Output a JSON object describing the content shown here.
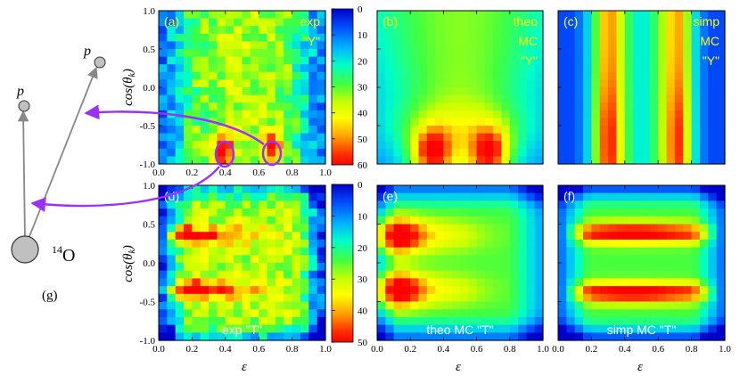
{
  "chart_data": [
    {
      "panel": "(a)",
      "type": "heatmap",
      "labels": [
        "exp",
        "\"Y\""
      ],
      "label_color": "#ffff00",
      "source": "exp_y",
      "x_ticks": [
        "0.0",
        "0.2",
        "0.4",
        "0.6",
        "0.8",
        "1.0"
      ],
      "y_ticks": [
        "1.0",
        "0.5",
        "0.0",
        "-0.5",
        "-1.0"
      ],
      "xlim": [
        0,
        1
      ],
      "ylim": [
        -1,
        1
      ],
      "ylabel": "cos(θk)"
    },
    {
      "panel": "(b)",
      "type": "heatmap",
      "labels": [
        "theo",
        "MC",
        "\"Y\""
      ],
      "label_color": "#ffff00",
      "source": "theo_y",
      "xlim": [
        0,
        1
      ],
      "ylim": [
        -1,
        1
      ]
    },
    {
      "panel": "(c)",
      "type": "heatmap",
      "labels": [
        "simp",
        "MC",
        "\"Y\""
      ],
      "label_color": "#ffff00",
      "source": "simp_y",
      "xlim": [
        0,
        1
      ],
      "ylim": [
        -1,
        1
      ]
    },
    {
      "panel": "(d)",
      "type": "heatmap",
      "labels": [
        "exp  \"T\""
      ],
      "label_color": "#ffffff",
      "source": "exp_t",
      "x_ticks": [
        "0.0",
        "0.2",
        "0.4",
        "0.6",
        "0.8",
        "1.0"
      ],
      "y_ticks": [
        "1.0",
        "0.5",
        "0.0",
        "-0.5",
        "-1.0"
      ],
      "xlim": [
        0,
        1
      ],
      "ylim": [
        -1,
        1
      ],
      "xlabel": "ε",
      "ylabel": "cos(θk)"
    },
    {
      "panel": "(e)",
      "type": "heatmap",
      "labels": [
        "theo MC  \"T\""
      ],
      "label_color": "#ffffff",
      "source": "theo_t",
      "x_ticks": [
        "0.0",
        "0.2",
        "0.4",
        "0.6",
        "0.8",
        "1.0"
      ],
      "xlim": [
        0,
        1
      ],
      "ylim": [
        -1,
        1
      ],
      "xlabel": "ε"
    },
    {
      "panel": "(f)",
      "type": "heatmap",
      "labels": [
        "simp MC  \"T\""
      ],
      "label_color": "#ffffff",
      "source": "simp_t",
      "x_ticks": [
        "0.0",
        "0.2",
        "0.4",
        "0.6",
        "0.8",
        "1.0"
      ],
      "xlim": [
        0,
        1
      ],
      "ylim": [
        -1,
        1
      ],
      "xlabel": "ε"
    }
  ],
  "colorbars": [
    {
      "ticks": [
        "0",
        "10",
        "20",
        "30",
        "40",
        "50",
        "60"
      ],
      "range": [
        0,
        60
      ]
    },
    {
      "ticks": [
        "0",
        "10",
        "20",
        "30",
        "40",
        "50"
      ],
      "range": [
        0,
        50
      ]
    }
  ],
  "colormap": [
    "#0000cc",
    "#0050ff",
    "#00b4ff",
    "#00ffc8",
    "#40ff40",
    "#c8ff00",
    "#ffff00",
    "#ffa000",
    "#ff3000",
    "#ff0000"
  ],
  "diagram": {
    "p_top": "p",
    "p_left": "p",
    "nucleus": "14O",
    "nucleus_sup": "14",
    "nucleus_sym": "O",
    "panel_label": "(g)",
    "arrow_color": "#9b30ff"
  }
}
